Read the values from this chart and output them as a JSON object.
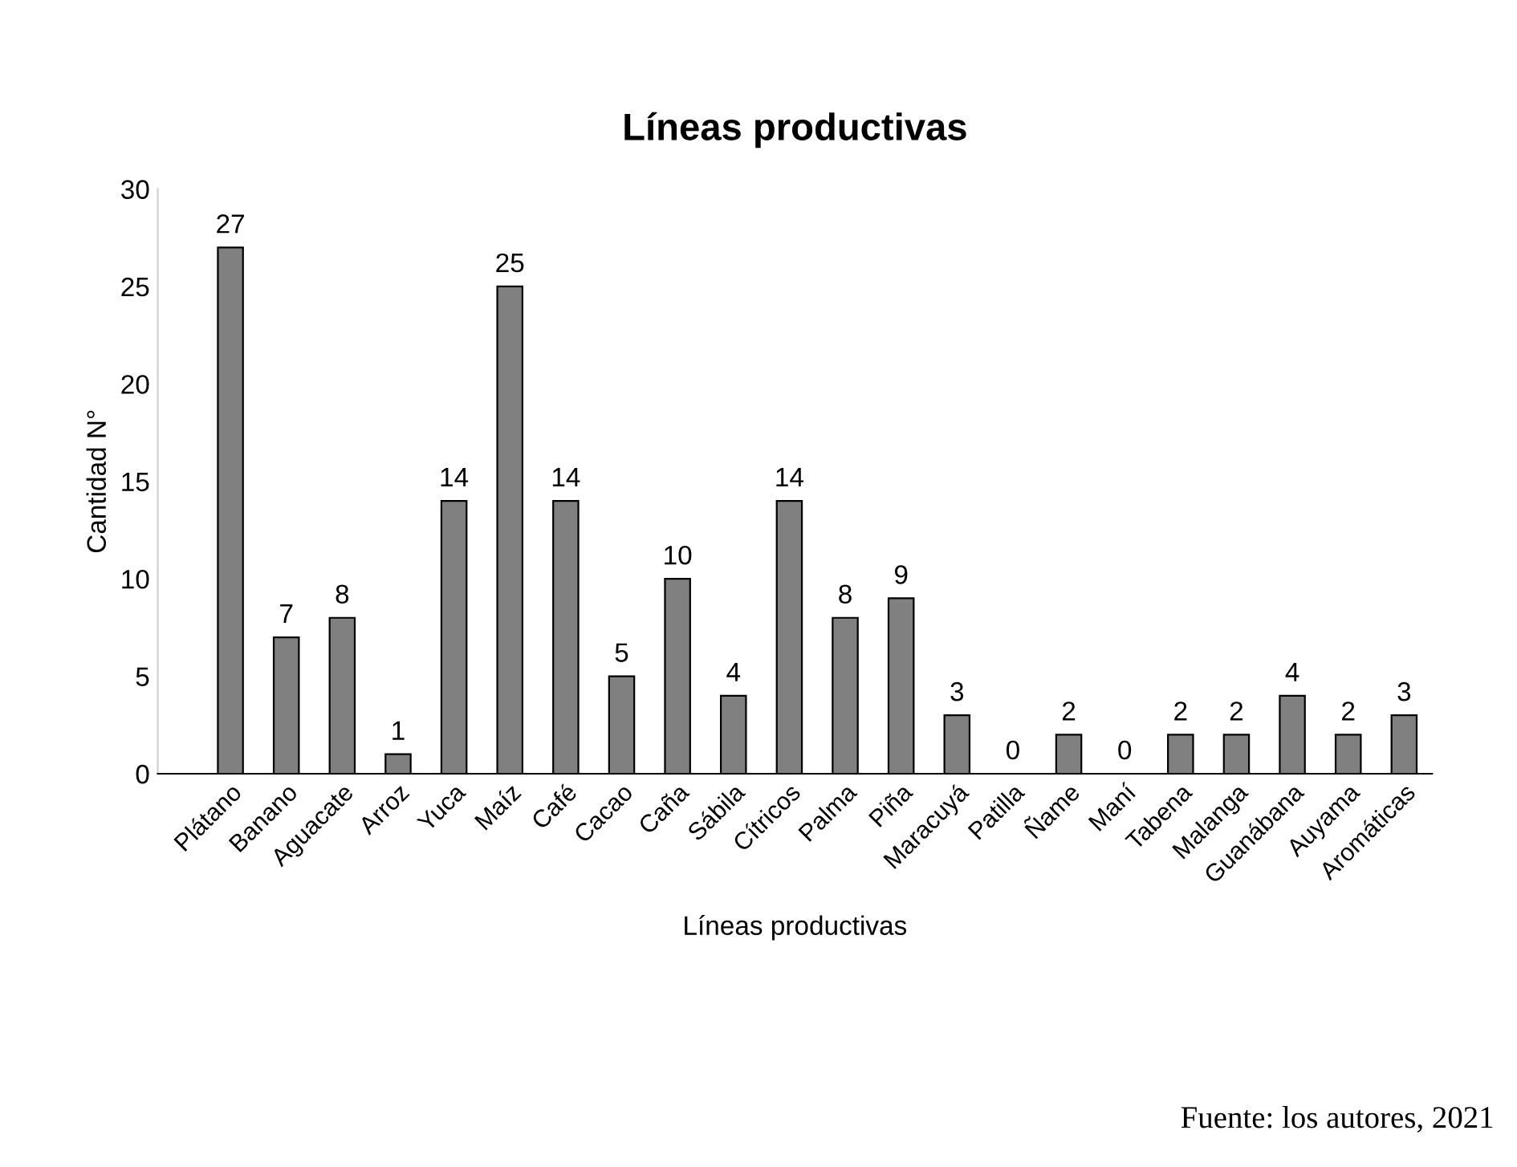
{
  "chart_data": {
    "type": "bar",
    "title": "Líneas productivas",
    "xlabel": "Líneas productivas",
    "ylabel": "Cantidad N°",
    "categories": [
      "Plátano",
      "Banano",
      "Aguacate",
      "Arroz",
      "Yuca",
      "Maíz",
      "Café",
      "Cacao",
      "Caña",
      "Sábila",
      "Cítricos",
      "Palma",
      "Piña",
      "Maracuyá",
      "Patilla",
      "Ñame",
      "Maní",
      "Tabena",
      "Malanga",
      "Guanábana",
      "Auyama",
      "Aromáticas"
    ],
    "values": [
      27,
      7,
      8,
      1,
      14,
      25,
      14,
      5,
      10,
      4,
      14,
      8,
      9,
      3,
      0,
      2,
      0,
      2,
      2,
      4,
      2,
      3
    ],
    "color": "#808080",
    "ylim": [
      0,
      30
    ],
    "yticks": [
      0,
      5,
      10,
      15,
      20,
      25,
      30
    ],
    "grid": false,
    "data_labels": true,
    "annotations": [
      "Fuente: los autores, 2021"
    ]
  }
}
